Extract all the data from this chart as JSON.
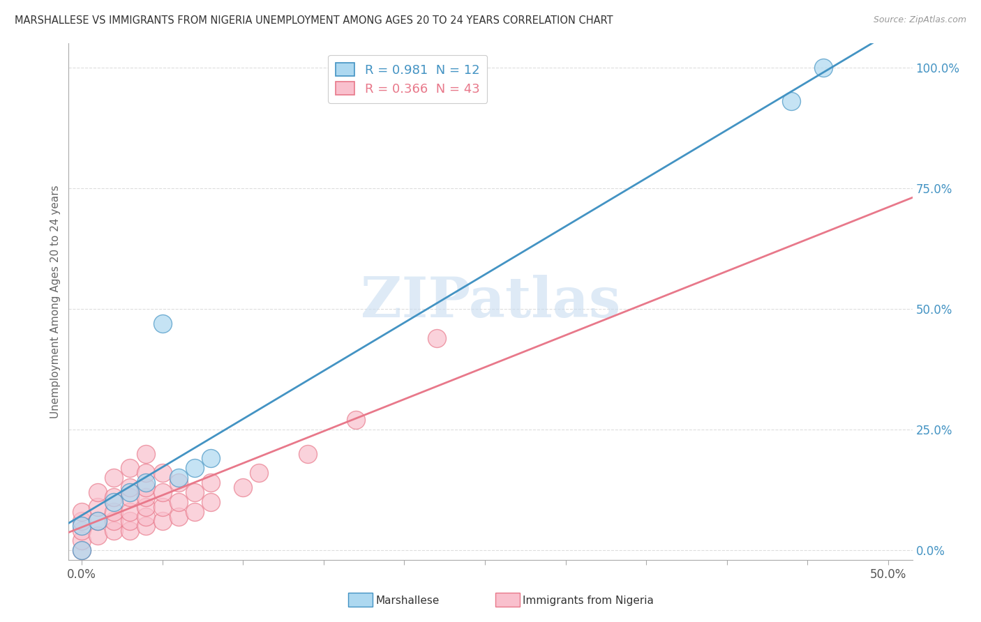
{
  "title": "MARSHALLESE VS IMMIGRANTS FROM NIGERIA UNEMPLOYMENT AMONG AGES 20 TO 24 YEARS CORRELATION CHART",
  "source": "Source: ZipAtlas.com",
  "ylabel": "Unemployment Among Ages 20 to 24 years",
  "xlim": [
    0.0,
    0.5
  ],
  "ylim": [
    -0.02,
    1.05
  ],
  "marshallese_color": "#ADD8F0",
  "nigeria_color": "#F9C0CD",
  "marshallese_line_color": "#4393C3",
  "nigeria_line_color": "#E8788A",
  "nigeria_reg_line_color": "#E8788A",
  "watermark_text": "ZIPatlas",
  "watermark_color": "#C8DCF0",
  "grid_color": "#DDDDDD",
  "right_tick_color": "#4393C3",
  "marshallese_scatter_x": [
    0.0,
    0.0,
    0.01,
    0.02,
    0.03,
    0.04,
    0.05,
    0.06,
    0.07,
    0.08,
    0.44,
    0.46
  ],
  "marshallese_scatter_y": [
    0.0,
    0.05,
    0.06,
    0.1,
    0.12,
    0.14,
    0.47,
    0.15,
    0.17,
    0.19,
    0.93,
    1.0
  ],
  "nigeria_scatter_x": [
    0.0,
    0.0,
    0.0,
    0.0,
    0.0,
    0.01,
    0.01,
    0.01,
    0.01,
    0.02,
    0.02,
    0.02,
    0.02,
    0.02,
    0.03,
    0.03,
    0.03,
    0.03,
    0.03,
    0.03,
    0.04,
    0.04,
    0.04,
    0.04,
    0.04,
    0.04,
    0.04,
    0.05,
    0.05,
    0.05,
    0.05,
    0.06,
    0.06,
    0.06,
    0.07,
    0.07,
    0.08,
    0.08,
    0.1,
    0.11,
    0.14,
    0.17,
    0.22
  ],
  "nigeria_scatter_y": [
    0.0,
    0.02,
    0.04,
    0.06,
    0.08,
    0.03,
    0.06,
    0.09,
    0.12,
    0.04,
    0.06,
    0.08,
    0.11,
    0.15,
    0.04,
    0.06,
    0.08,
    0.11,
    0.13,
    0.17,
    0.05,
    0.07,
    0.09,
    0.11,
    0.13,
    0.16,
    0.2,
    0.06,
    0.09,
    0.12,
    0.16,
    0.07,
    0.1,
    0.14,
    0.08,
    0.12,
    0.1,
    0.14,
    0.13,
    0.16,
    0.2,
    0.27,
    0.44
  ]
}
